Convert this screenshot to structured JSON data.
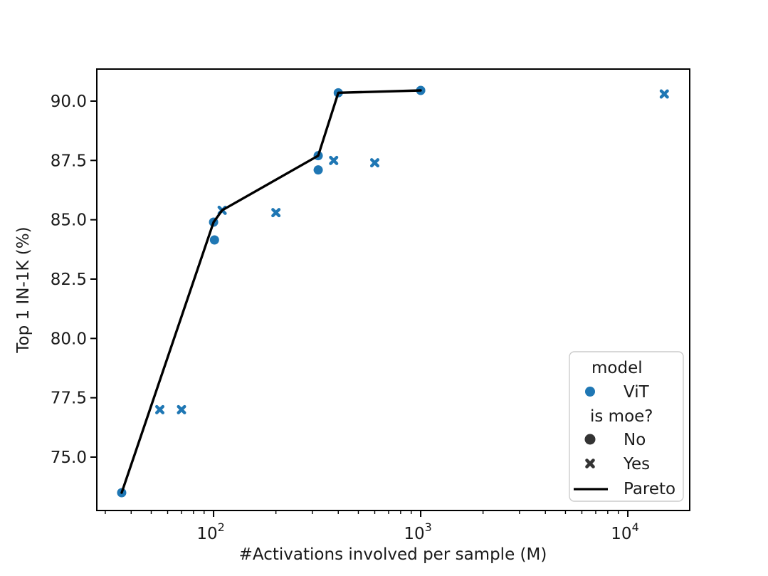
{
  "window": {
    "background": "#ffffff"
  },
  "colors": {
    "blue": "#1f77b4",
    "black": "#000000",
    "legend_gray": "#333333",
    "axis": "#000000",
    "legend_border": "#cccccc",
    "text": "#1a1a1a"
  },
  "chart_data": {
    "type": "scatter",
    "title": "",
    "xlabel": "#Activations involved per sample (M)",
    "ylabel": "Top 1 IN-1K (%)",
    "x_scale": "log10",
    "xlim": [
      27.3,
      19900
    ],
    "ylim": [
      72.75,
      91.35
    ],
    "grid": false,
    "x_tick_base": "10",
    "x_major_ticks": [
      {
        "value": 100,
        "exponent": "2"
      },
      {
        "value": 1000,
        "exponent": "3"
      },
      {
        "value": 10000,
        "exponent": "4"
      }
    ],
    "x_minor_ticks": [
      30,
      40,
      50,
      60,
      70,
      80,
      90,
      200,
      300,
      400,
      500,
      600,
      700,
      800,
      900,
      2000,
      3000,
      4000,
      5000,
      6000,
      7000,
      8000,
      9000
    ],
    "y_ticks": [
      75.0,
      77.5,
      80.0,
      82.5,
      85.0,
      87.5,
      90.0
    ],
    "y_tick_decimals": 1,
    "series": [
      {
        "name": "ViT (is moe = No)",
        "marker": "circle",
        "color": "#1f77b4",
        "points": [
          [
            36,
            73.5
          ],
          [
            100,
            84.9
          ],
          [
            101,
            84.15
          ],
          [
            320,
            87.7
          ],
          [
            320,
            87.1
          ],
          [
            400,
            90.35
          ],
          [
            1000,
            90.45
          ]
        ]
      },
      {
        "name": "ViT (is moe = Yes)",
        "marker": "x",
        "color": "#1f77b4",
        "points": [
          [
            55,
            77.0
          ],
          [
            70,
            77.0
          ],
          [
            110,
            85.4
          ],
          [
            200,
            85.3
          ],
          [
            380,
            87.5
          ],
          [
            600,
            87.4
          ],
          [
            15000,
            90.3
          ]
        ]
      }
    ],
    "pareto_line": {
      "name": "Pareto",
      "color": "#000000",
      "points": [
        [
          36,
          73.5
        ],
        [
          100,
          84.9
        ],
        [
          110,
          85.4
        ],
        [
          320,
          87.7
        ],
        [
          400,
          90.35
        ],
        [
          1000,
          90.45
        ]
      ]
    },
    "legend": {
      "position": "lower right",
      "group1_title": "model",
      "vit_label": "ViT",
      "group2_title": "is moe?",
      "no_label": "No",
      "yes_label": "Yes",
      "pareto_label": "Pareto"
    }
  }
}
